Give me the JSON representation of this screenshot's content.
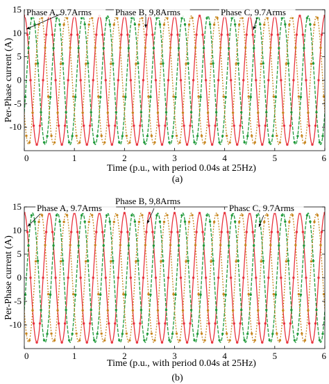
{
  "chart_data": [
    {
      "type": "line",
      "panel_label": "(a)",
      "xlabel": "Time (p.u., with period 0.04s at 25Hz)",
      "ylabel": "Per-Phase current (A)",
      "xlim": [
        0,
        6
      ],
      "ylim": [
        -15,
        15
      ],
      "xticks": [
        "0",
        "1",
        "2",
        "3",
        "4",
        "5",
        "6"
      ],
      "yticks": [
        "15",
        "10",
        "5",
        "0",
        "-5",
        "-10"
      ],
      "grid": false,
      "legend": "none",
      "amplitude": 13.7,
      "cycles_per_unit": 2,
      "series": [
        {
          "name": "Phase A,  9.7Arms",
          "color": "#e8323c",
          "style": "solid",
          "phase_deg": 90
        },
        {
          "name": "Phase B, 9,8Arms",
          "color": "#1f9a3a",
          "style": "dashed",
          "phase_deg": -30
        },
        {
          "name": "Phase C, 9.7Arms",
          "color": "#c8861e",
          "style": "dotted",
          "phase_deg": 210
        }
      ],
      "annotations": [
        "Phase A,  9.7Arms",
        "Phase B, 9,8Arms",
        "Phase C, 9.7Arms"
      ]
    },
    {
      "type": "line",
      "panel_label": "(b)",
      "xlabel": "Time (p.u., with period 0.04s at 25Hz)",
      "ylabel": "Per-Phase current (A)",
      "xlim": [
        0,
        6
      ],
      "ylim": [
        -15,
        15
      ],
      "xticks": [
        "0",
        "1",
        "2",
        "3",
        "4",
        "5",
        "6"
      ],
      "yticks": [
        "15",
        "10",
        "5",
        "0",
        "-5",
        "-10"
      ],
      "grid": false,
      "legend": "none",
      "amplitude": 13.7,
      "cycles_per_unit": 2,
      "series": [
        {
          "name": "Phase A,  9.7Arms",
          "color": "#e8323c",
          "style": "solid",
          "phase_deg": 90
        },
        {
          "name": "Phase B, 9,8Arms",
          "color": "#1f9a3a",
          "style": "dashed",
          "phase_deg": -30
        },
        {
          "name": "Phase C, 9.7Arms",
          "color": "#c8861e",
          "style": "dotted",
          "phase_deg": 210
        }
      ],
      "annotations": [
        "Phase A,  9.7Arms",
        "Phase B, 9,8Arms",
        "Phasc C, 9.7Arms"
      ]
    }
  ]
}
